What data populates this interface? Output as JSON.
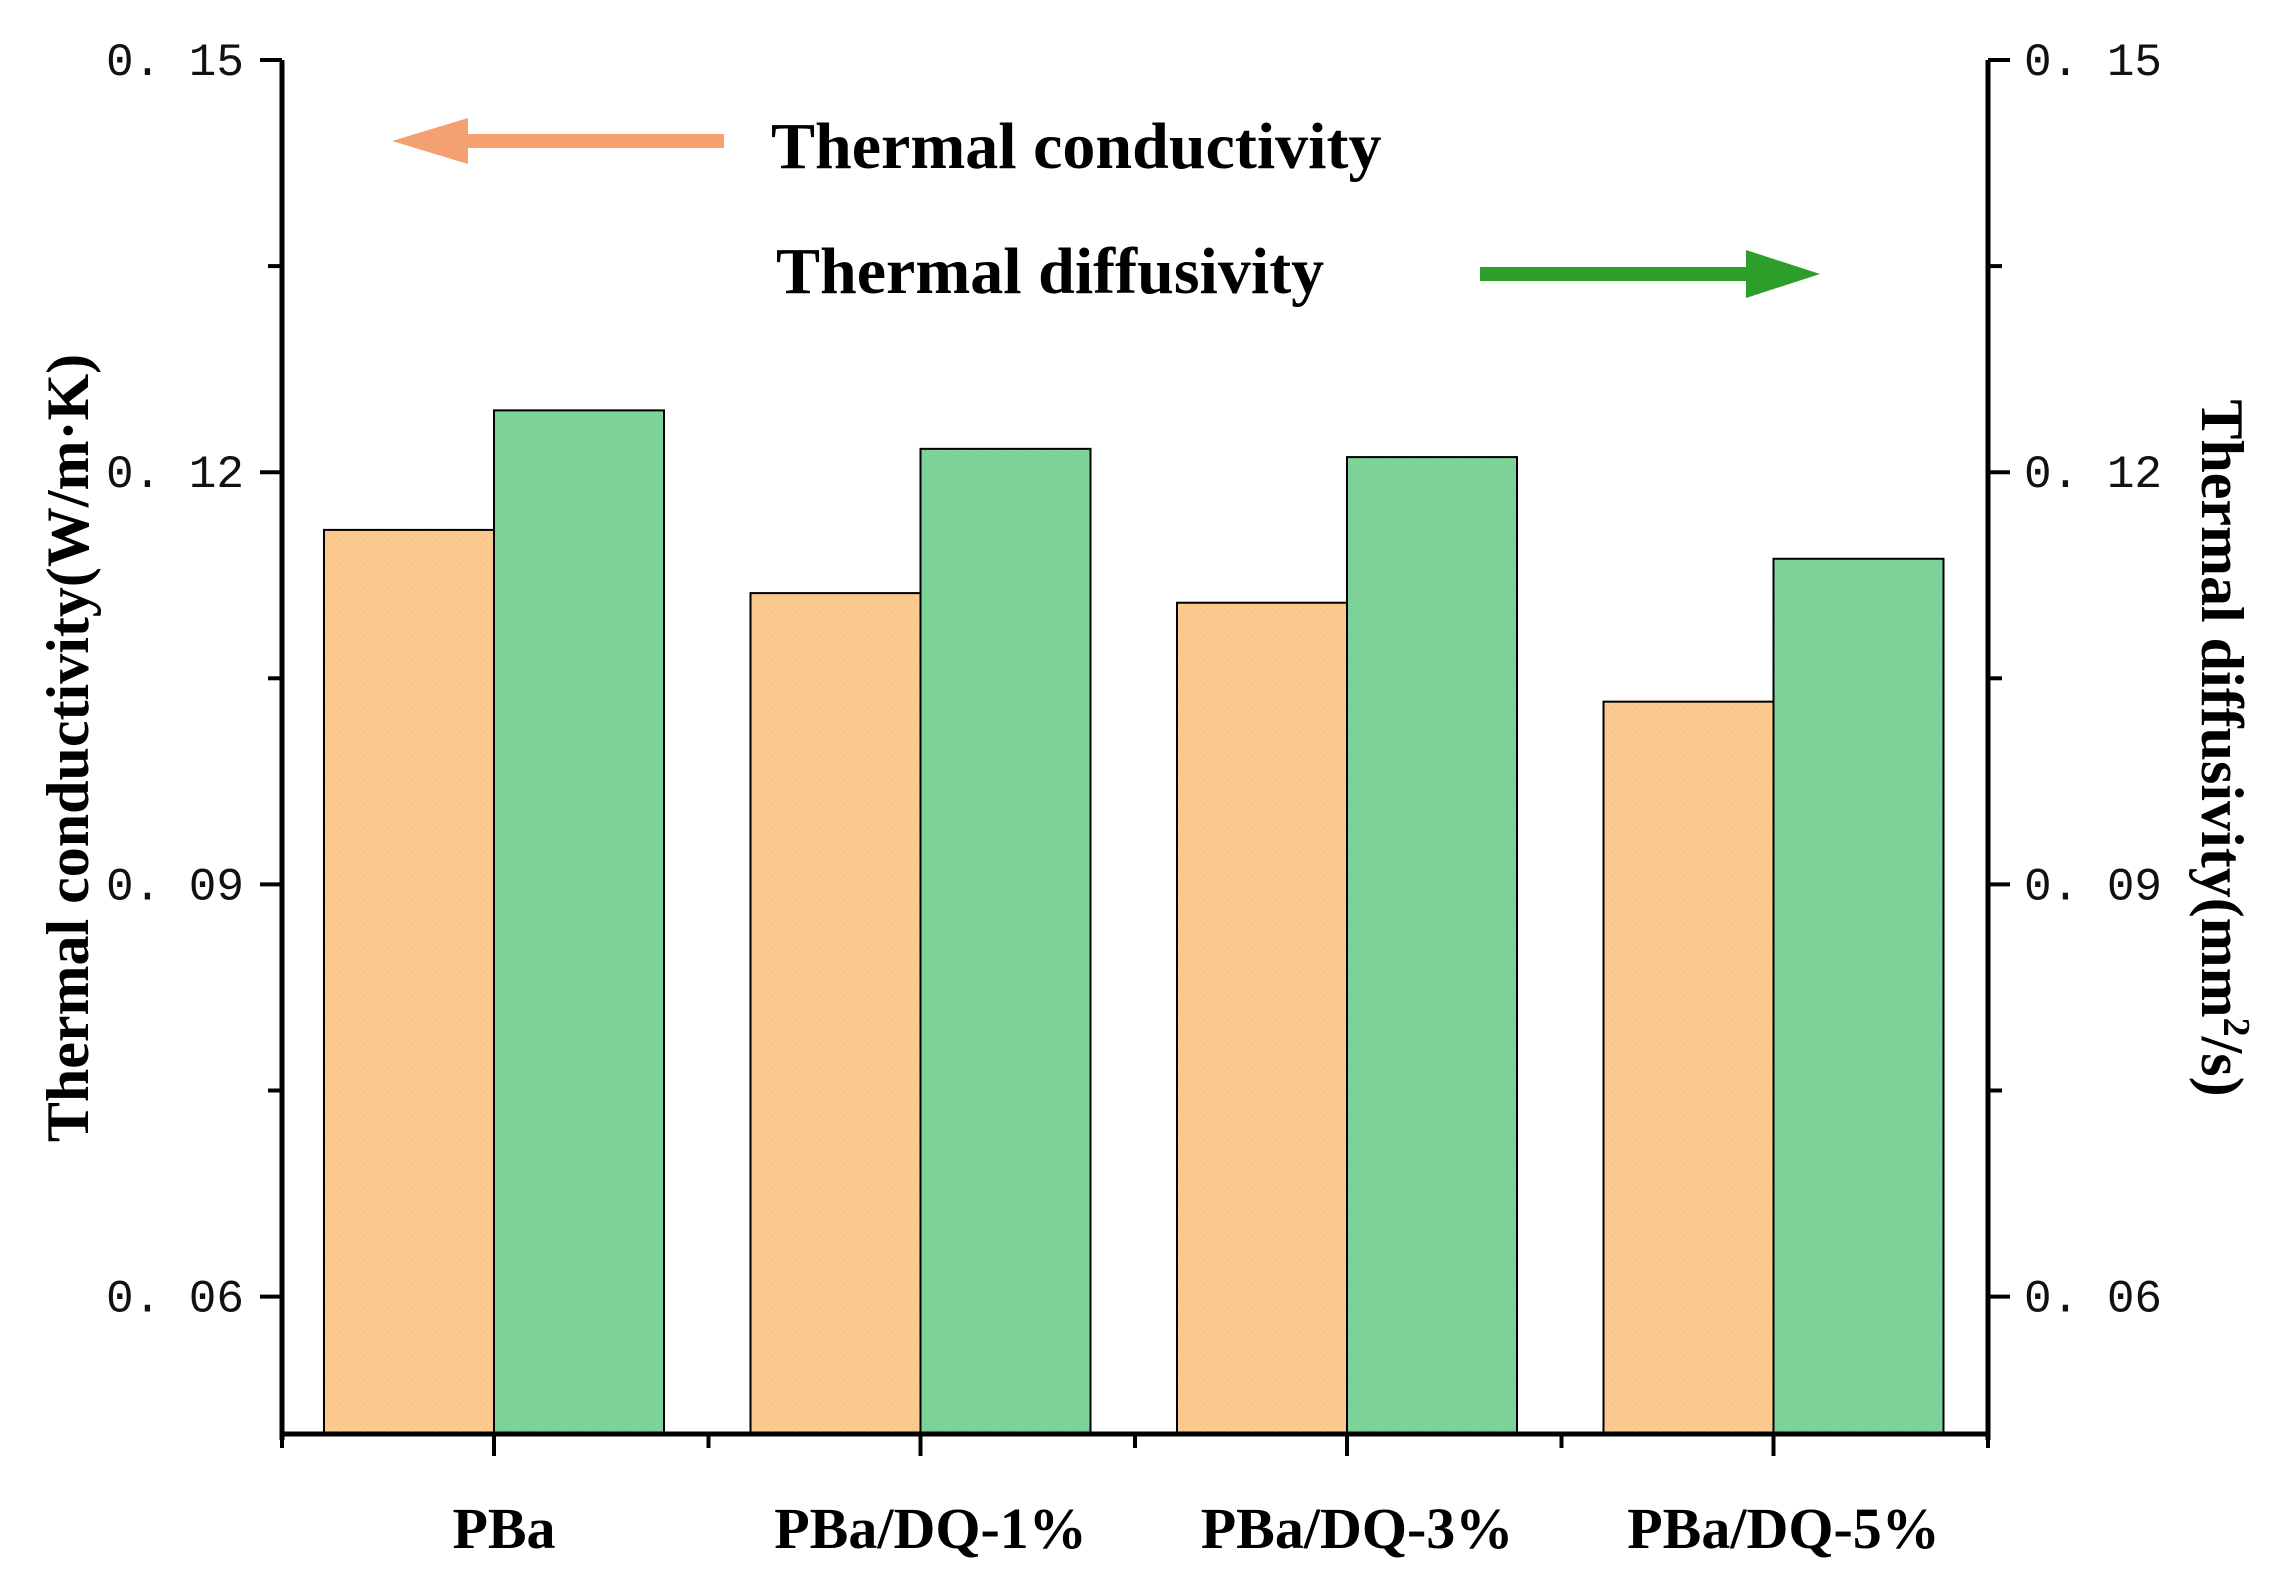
{
  "chart_data": {
    "type": "bar",
    "categories": [
      "PBa",
      "PBa/DQ-1%",
      "PBa/DQ-3%",
      "PBa/DQ-5%"
    ],
    "series": [
      {
        "name": "Thermal conductivity",
        "axis": "left",
        "values": [
          0.1158,
          0.1112,
          0.1105,
          0.1033
        ],
        "color": "#fcc98f"
      },
      {
        "name": "Thermal diffusivity",
        "axis": "right",
        "values": [
          0.1245,
          0.1217,
          0.1211,
          0.1137
        ],
        "color": "#7dd39a"
      }
    ],
    "ylabel_left": "Thermal conductivity(W/m·K)",
    "ylabel_right": {
      "prefix": "Thermal diffusivity(mm",
      "sup": "2",
      "suffix": "/s)"
    },
    "ylim": [
      0.05,
      0.15
    ],
    "yticks": [
      0.06,
      0.09,
      0.12,
      0.15
    ],
    "ytick_labels": [
      "0. 06",
      "0. 09",
      "0. 12",
      "0. 15"
    ],
    "legend": [
      {
        "label": "Thermal conductivity",
        "arrow": "left",
        "color": "#f4a070"
      },
      {
        "label": "Thermal diffusivity",
        "arrow": "right",
        "color": "#2e9e2a"
      }
    ],
    "grid": false
  }
}
